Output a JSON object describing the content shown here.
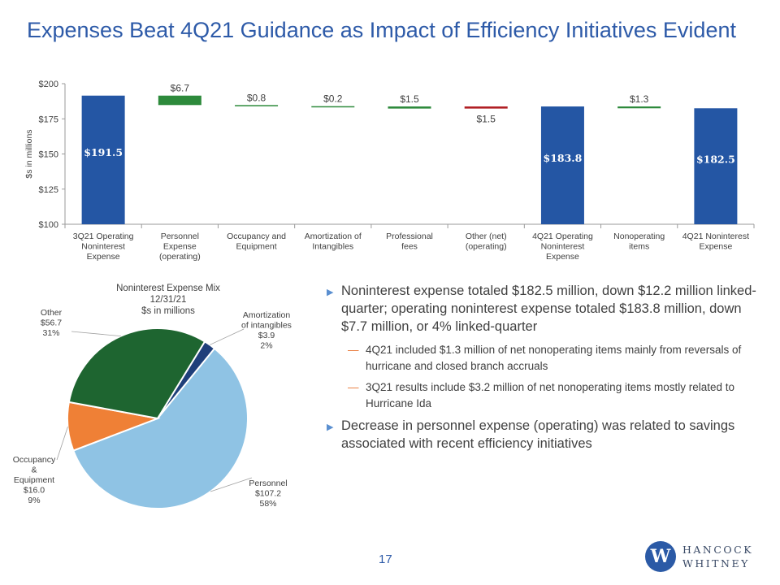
{
  "title": "Expenses Beat 4Q21 Guidance as Impact of Efficiency Initiatives Evident",
  "page_number": "17",
  "logo": {
    "mark": "W",
    "line1": "HANCOCK",
    "line2": "WHITNEY"
  },
  "chart_data": [
    {
      "type": "bar",
      "subtype": "waterfall",
      "ylabel": "$s in millions",
      "ylim": [
        100,
        200
      ],
      "yticks": [
        "$100",
        "$125",
        "$150",
        "$175",
        "$200"
      ],
      "categories": [
        "3Q21 Operating Noninterest Expense",
        "Personnel Expense (operating)",
        "Occupancy and Equipment",
        "Amortization of Intangibles",
        "Professional fees",
        "Other (net) (operating)",
        "4Q21 Operating Noninterest Expense",
        "Nonoperating items",
        "4Q21 Noninterest Expense"
      ],
      "category_lines": [
        [
          "3Q21 Operating",
          "Noninterest",
          "Expense"
        ],
        [
          "Personnel",
          "Expense",
          "(operating)"
        ],
        [
          "Occupancy and",
          "Equipment"
        ],
        [
          "Amortization of",
          "Intangibles"
        ],
        [
          "Professional",
          "fees"
        ],
        [
          "Other (net)",
          "(operating)"
        ],
        [
          "4Q21 Operating",
          "Noninterest",
          "Expense"
        ],
        [
          "Nonoperating",
          "items"
        ],
        [
          "4Q21 Noninterest",
          "Expense"
        ]
      ],
      "bars": [
        {
          "kind": "total",
          "start": 100,
          "end": 191.5,
          "label": "$191.5",
          "color": "#2456a4"
        },
        {
          "kind": "delta",
          "start": 184.8,
          "end": 191.5,
          "label": "$6.7",
          "color": "#2d8a3b"
        },
        {
          "kind": "delta",
          "start": 184.0,
          "end": 184.8,
          "label": "$0.8",
          "color": "#2d8a3b"
        },
        {
          "kind": "delta",
          "start": 183.8,
          "end": 184.0,
          "label": "$0.2",
          "color": "#2d8a3b"
        },
        {
          "kind": "delta",
          "start": 182.3,
          "end": 183.8,
          "label": "$1.5",
          "color": "#2d8a3b"
        },
        {
          "kind": "delta",
          "start": 182.3,
          "end": 183.8,
          "label": "$1.5",
          "color": "#b01e23",
          "label_below": true
        },
        {
          "kind": "total",
          "start": 100,
          "end": 183.8,
          "label": "$183.8",
          "color": "#2456a4"
        },
        {
          "kind": "delta",
          "start": 182.5,
          "end": 183.8,
          "label": "$1.3",
          "color": "#2d8a3b"
        },
        {
          "kind": "total",
          "start": 100,
          "end": 182.5,
          "label": "$182.5",
          "color": "#2456a4"
        }
      ]
    },
    {
      "type": "pie",
      "title_lines": [
        "Noninterest Expense Mix",
        "12/31/21",
        "$s in millions"
      ],
      "slices": [
        {
          "name": "Amortization of intangibles",
          "value": 3.9,
          "label_lines": [
            "Amortization",
            "of intangibles",
            "$3.9",
            "2%"
          ],
          "color": "#1f3f7a"
        },
        {
          "name": "Personnel",
          "value": 107.2,
          "label_lines": [
            "Personnel",
            "$107.2",
            "58%"
          ],
          "color": "#8fc3e4"
        },
        {
          "name": "Occupancy & Equipment",
          "value": 16.0,
          "label_lines": [
            "Occupancy",
            "&",
            "Equipment",
            "$16.0",
            "9%"
          ],
          "color": "#ef8036"
        },
        {
          "name": "Other",
          "value": 56.7,
          "label_lines": [
            "Other",
            "$56.7",
            "31%"
          ],
          "color": "#1e6530"
        }
      ]
    }
  ],
  "bullets": [
    {
      "level": 1,
      "text": "Noninterest expense totaled $182.5 million, down $12.2 million linked-quarter; operating noninterest expense totaled $183.8 million, down $7.7 million, or 4% linked-quarter"
    },
    {
      "level": 2,
      "text": "4Q21 included $1.3 million of net nonoperating items mainly from reversals of hurricane and closed branch accruals"
    },
    {
      "level": 2,
      "text": "3Q21 results include $3.2 million of net nonoperating items mostly related to Hurricane Ida"
    },
    {
      "level": 1,
      "text": "Decrease in personnel expense (operating) was related to savings associated with recent efficiency initiatives"
    }
  ]
}
